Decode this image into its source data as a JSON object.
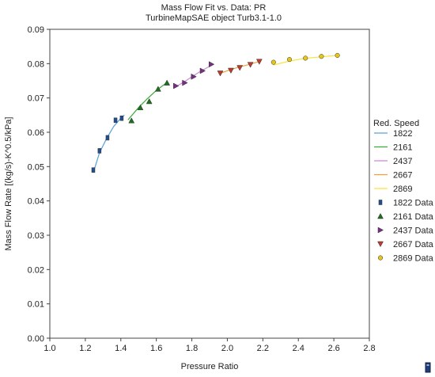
{
  "chart_data": {
    "type": "line",
    "title": "Mass Flow Fit vs. Data: PR",
    "subtitle": "TurbineMapSAE object Turb3.1-1.0",
    "xlabel": "Pressure Ratio",
    "ylabel": "Mass Flow Rate [(kg/s)-K^0.5/kPa]",
    "xlim": [
      1.0,
      2.8
    ],
    "ylim": [
      0.0,
      0.09
    ],
    "x_ticks": [
      "1.0",
      "1.2",
      "1.4",
      "1.6",
      "1.8",
      "2.0",
      "2.2",
      "2.4",
      "2.6",
      "2.8"
    ],
    "y_ticks": [
      "0.00",
      "0.01",
      "0.02",
      "0.03",
      "0.04",
      "0.05",
      "0.06",
      "0.07",
      "0.08",
      "0.09"
    ],
    "grid": false,
    "legend_title": "Red. Speed",
    "legend_position": "right",
    "fit_series": [
      {
        "name": "1822",
        "color": "#5aa0d8",
        "x": [
          1.245,
          1.28,
          1.32,
          1.36,
          1.4,
          1.42
        ],
        "y": [
          0.0483,
          0.054,
          0.0582,
          0.0617,
          0.0641,
          0.065
        ]
      },
      {
        "name": "2161",
        "color": "#3aaa35",
        "x": [
          1.44,
          1.5,
          1.55,
          1.6,
          1.66
        ],
        "y": [
          0.0636,
          0.0672,
          0.0698,
          0.0722,
          0.0745
        ]
      },
      {
        "name": "2437",
        "color": "#c98bd0",
        "x": [
          1.71,
          1.76,
          1.81,
          1.85,
          1.91
        ],
        "y": [
          0.0733,
          0.0748,
          0.0765,
          0.0778,
          0.0795
        ]
      },
      {
        "name": "2667",
        "color": "#f0a040",
        "x": [
          1.96,
          2.01,
          2.06,
          2.12,
          2.18
        ],
        "y": [
          0.0772,
          0.0781,
          0.0789,
          0.0797,
          0.0806
        ]
      },
      {
        "name": "2869",
        "color": "#f6e33a",
        "x": [
          2.26,
          2.34,
          2.43,
          2.53,
          2.62
        ],
        "y": [
          0.0796,
          0.0806,
          0.0815,
          0.082,
          0.0824
        ]
      }
    ],
    "data_series": [
      {
        "name": "1822 Data",
        "marker": "square",
        "color": "#1f4f8f",
        "x": [
          1.245,
          1.28,
          1.325,
          1.37,
          1.405
        ],
        "y": [
          0.049,
          0.0546,
          0.0584,
          0.0635,
          0.0641
        ]
      },
      {
        "name": "2161 Data",
        "marker": "triangle-up",
        "color": "#1d6e1d",
        "x": [
          1.46,
          1.51,
          1.56,
          1.61,
          1.66
        ],
        "y": [
          0.0634,
          0.0672,
          0.069,
          0.0726,
          0.0744
        ]
      },
      {
        "name": "2437 Data",
        "marker": "triangle-right",
        "color": "#7a2c86",
        "x": [
          1.71,
          1.76,
          1.81,
          1.86,
          1.91
        ],
        "y": [
          0.0735,
          0.0744,
          0.0762,
          0.0779,
          0.0798
        ]
      },
      {
        "name": "2667 Data",
        "marker": "triangle-down",
        "color": "#c0392b",
        "x": [
          1.96,
          2.02,
          2.07,
          2.13,
          2.18
        ],
        "y": [
          0.0772,
          0.078,
          0.0788,
          0.0797,
          0.0806
        ]
      },
      {
        "name": "2869 Data",
        "marker": "circle",
        "color": "#e6c619",
        "x": [
          2.26,
          2.35,
          2.44,
          2.53,
          2.62
        ],
        "y": [
          0.0804,
          0.0812,
          0.0816,
          0.0821,
          0.0824
        ]
      }
    ]
  }
}
